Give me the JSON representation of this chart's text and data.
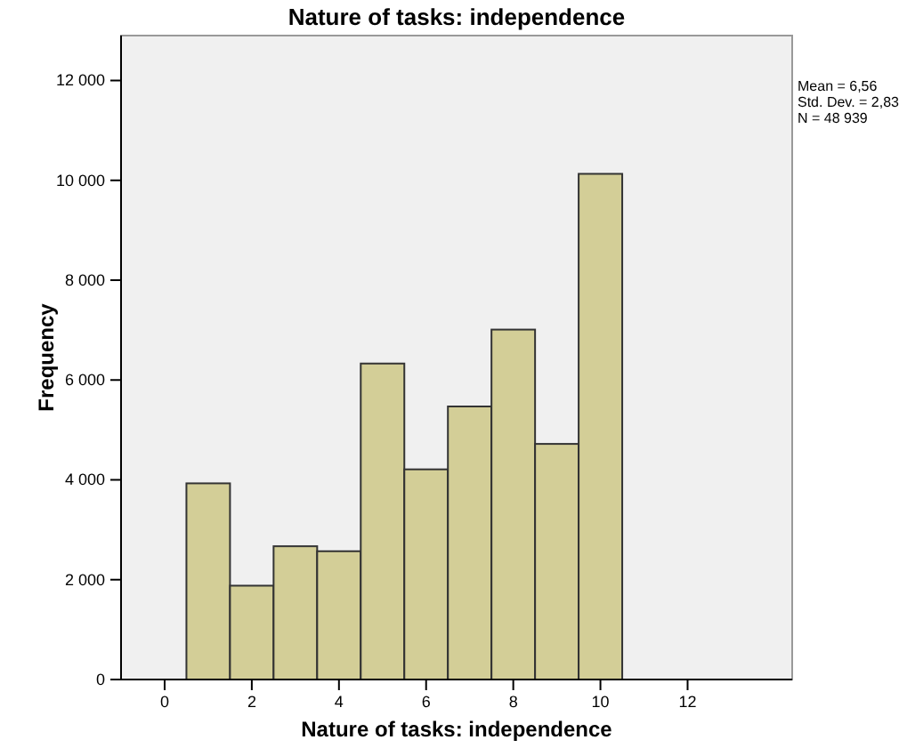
{
  "chart_data": {
    "type": "histogram",
    "title": "Nature of tasks: independence",
    "xlabel": "Nature of tasks: independence",
    "ylabel": "Frequency",
    "bins": [
      0.5,
      1.5,
      2.5,
      3.5,
      4.5,
      5.5,
      6.5,
      7.5,
      8.5,
      9.5,
      10.5
    ],
    "values": [
      3930,
      1880,
      2670,
      2570,
      6330,
      4210,
      5470,
      7010,
      4720,
      10130
    ],
    "color": "#d3ce97",
    "xlim": [
      -1,
      14.4
    ],
    "xticks": [
      0,
      2,
      4,
      6,
      8,
      10,
      12
    ],
    "ylim": [
      0,
      12900
    ],
    "yticks": [
      0,
      {
        "value": 2000,
        "label": "2 000"
      },
      {
        "value": 4000,
        "label": "4 000"
      },
      {
        "value": 6000,
        "label": "6 000"
      },
      {
        "value": 8000,
        "label": "8 000"
      },
      {
        "value": 10000,
        "label": "10 000"
      },
      {
        "value": 12000,
        "label": "12 000"
      }
    ],
    "annotations": [
      "Mean = 6,56",
      "Std. Dev. = 2,83",
      "N = 48 939"
    ],
    "grid": false
  }
}
